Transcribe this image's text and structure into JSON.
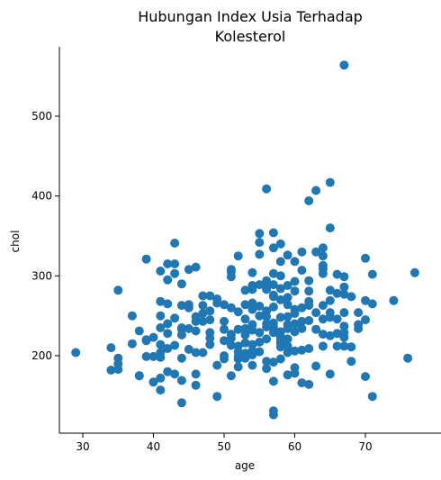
{
  "chart_data": {
    "type": "scatter",
    "title_lines": [
      "Hubungan Index Usia Terhadap",
      "Kolesterol"
    ],
    "xlabel": "age",
    "ylabel": "chol",
    "xlim": [
      27,
      78
    ],
    "ylim": [
      105,
      585
    ],
    "xticks": [
      30,
      40,
      50,
      60,
      70
    ],
    "yticks": [
      200,
      300,
      400,
      500
    ],
    "grid": false,
    "point_color": "#1f77b4",
    "points": [
      [
        29,
        204
      ],
      [
        34,
        210
      ],
      [
        34,
        182
      ],
      [
        35,
        282
      ],
      [
        35,
        197
      ],
      [
        35,
        190
      ],
      [
        35,
        183
      ],
      [
        37,
        250
      ],
      [
        37,
        215
      ],
      [
        38,
        231
      ],
      [
        38,
        175
      ],
      [
        38,
        175
      ],
      [
        39,
        321
      ],
      [
        39,
        199
      ],
      [
        39,
        219
      ],
      [
        39,
        220
      ],
      [
        40,
        199
      ],
      [
        40,
        223
      ],
      [
        40,
        167
      ],
      [
        41,
        306
      ],
      [
        41,
        268
      ],
      [
        41,
        250
      ],
      [
        41,
        235
      ],
      [
        41,
        214
      ],
      [
        41,
        204
      ],
      [
        41,
        198
      ],
      [
        41,
        172
      ],
      [
        41,
        157
      ],
      [
        42,
        315
      ],
      [
        42,
        295
      ],
      [
        42,
        265
      ],
      [
        42,
        240
      ],
      [
        42,
        228
      ],
      [
        42,
        209
      ],
      [
        42,
        180
      ],
      [
        43,
        341
      ],
      [
        43,
        315
      ],
      [
        43,
        303
      ],
      [
        43,
        247
      ],
      [
        43,
        213
      ],
      [
        43,
        177
      ],
      [
        44,
        290
      ],
      [
        44,
        263
      ],
      [
        44,
        235
      ],
      [
        44,
        233
      ],
      [
        44,
        226
      ],
      [
        44,
        197
      ],
      [
        44,
        169
      ],
      [
        44,
        141
      ],
      [
        45,
        308
      ],
      [
        45,
        264
      ],
      [
        45,
        260
      ],
      [
        45,
        234
      ],
      [
        45,
        208
      ],
      [
        46,
        311
      ],
      [
        46,
        249
      ],
      [
        46,
        243
      ],
      [
        46,
        231
      ],
      [
        46,
        204
      ],
      [
        46,
        177
      ],
      [
        46,
        163
      ],
      [
        47,
        275
      ],
      [
        47,
        263
      ],
      [
        47,
        253
      ],
      [
        47,
        243
      ],
      [
        47,
        204
      ],
      [
        48,
        275
      ],
      [
        48,
        256
      ],
      [
        48,
        245
      ],
      [
        48,
        229
      ],
      [
        48,
        222
      ],
      [
        48,
        214
      ],
      [
        49,
        271
      ],
      [
        49,
        266
      ],
      [
        49,
        188
      ],
      [
        49,
        149
      ],
      [
        50,
        264
      ],
      [
        50,
        243
      ],
      [
        50,
        233
      ],
      [
        50,
        219
      ],
      [
        50,
        200
      ],
      [
        50,
        196
      ],
      [
        51,
        308
      ],
      [
        51,
        305
      ],
      [
        51,
        299
      ],
      [
        51,
        260
      ],
      [
        51,
        227
      ],
      [
        51,
        222
      ],
      [
        51,
        213
      ],
      [
        51,
        175
      ],
      [
        52,
        325
      ],
      [
        52,
        255
      ],
      [
        52,
        233
      ],
      [
        52,
        212
      ],
      [
        52,
        205
      ],
      [
        52,
        199
      ],
      [
        52,
        196
      ],
      [
        52,
        186
      ],
      [
        53,
        282
      ],
      [
        53,
        264
      ],
      [
        53,
        246
      ],
      [
        53,
        234
      ],
      [
        53,
        226
      ],
      [
        53,
        216
      ],
      [
        53,
        203
      ],
      [
        53,
        197
      ],
      [
        54,
        304
      ],
      [
        54,
        288
      ],
      [
        54,
        286
      ],
      [
        54,
        283
      ],
      [
        54,
        266
      ],
      [
        54,
        258
      ],
      [
        54,
        239
      ],
      [
        54,
        232
      ],
      [
        54,
        214
      ],
      [
        54,
        206
      ],
      [
        54,
        201
      ],
      [
        54,
        188
      ],
      [
        55,
        353
      ],
      [
        55,
        342
      ],
      [
        55,
        327
      ],
      [
        55,
        289
      ],
      [
        55,
        262
      ],
      [
        55,
        250
      ],
      [
        55,
        229
      ],
      [
        55,
        217
      ],
      [
        55,
        205
      ],
      [
        56,
        409
      ],
      [
        56,
        294
      ],
      [
        56,
        288
      ],
      [
        56,
        283
      ],
      [
        56,
        256
      ],
      [
        56,
        249
      ],
      [
        56,
        240
      ],
      [
        56,
        236
      ],
      [
        56,
        221
      ],
      [
        56,
        193
      ],
      [
        56,
        184
      ],
      [
        57,
        354
      ],
      [
        57,
        335
      ],
      [
        57,
        303
      ],
      [
        57,
        289
      ],
      [
        57,
        276
      ],
      [
        57,
        274
      ],
      [
        57,
        261
      ],
      [
        57,
        241
      ],
      [
        57,
        236
      ],
      [
        57,
        229
      ],
      [
        57,
        192
      ],
      [
        57,
        168
      ],
      [
        57,
        131
      ],
      [
        57,
        126
      ],
      [
        58,
        340
      ],
      [
        58,
        318
      ],
      [
        58,
        300
      ],
      [
        58,
        284
      ],
      [
        58,
        270
      ],
      [
        58,
        248
      ],
      [
        58,
        230
      ],
      [
        58,
        224
      ],
      [
        58,
        220
      ],
      [
        58,
        216
      ],
      [
        58,
        211
      ],
      [
        58,
        196
      ],
      [
        59,
        326
      ],
      [
        59,
        288
      ],
      [
        59,
        273
      ],
      [
        59,
        264
      ],
      [
        59,
        249
      ],
      [
        59,
        239
      ],
      [
        59,
        234
      ],
      [
        59,
        221
      ],
      [
        59,
        212
      ],
      [
        59,
        204
      ],
      [
        59,
        176
      ],
      [
        60,
        318
      ],
      [
        60,
        293
      ],
      [
        60,
        281
      ],
      [
        60,
        258
      ],
      [
        60,
        253
      ],
      [
        60,
        240
      ],
      [
        60,
        230
      ],
      [
        60,
        206
      ],
      [
        60,
        185
      ],
      [
        60,
        178
      ],
      [
        61,
        330
      ],
      [
        61,
        307
      ],
      [
        61,
        260
      ],
      [
        61,
        243
      ],
      [
        61,
        234
      ],
      [
        61,
        207
      ],
      [
        61,
        166
      ],
      [
        62,
        394
      ],
      [
        62,
        294
      ],
      [
        62,
        281
      ],
      [
        62,
        268
      ],
      [
        62,
        263
      ],
      [
        62,
        244
      ],
      [
        62,
        209
      ],
      [
        62,
        164
      ],
      [
        63,
        407
      ],
      [
        63,
        330
      ],
      [
        63,
        254
      ],
      [
        63,
        233
      ],
      [
        63,
        187
      ],
      [
        64,
        335
      ],
      [
        64,
        325
      ],
      [
        64,
        313
      ],
      [
        64,
        309
      ],
      [
        64,
        303
      ],
      [
        64,
        263
      ],
      [
        64,
        246
      ],
      [
        64,
        227
      ],
      [
        64,
        212
      ],
      [
        65,
        417
      ],
      [
        65,
        360
      ],
      [
        65,
        282
      ],
      [
        65,
        269
      ],
      [
        65,
        254
      ],
      [
        65,
        248
      ],
      [
        65,
        225
      ],
      [
        65,
        177
      ],
      [
        66,
        302
      ],
      [
        66,
        278
      ],
      [
        66,
        246
      ],
      [
        66,
        228
      ],
      [
        66,
        212
      ],
      [
        67,
        564
      ],
      [
        67,
        299
      ],
      [
        67,
        286
      ],
      [
        67,
        277
      ],
      [
        67,
        254
      ],
      [
        67,
        237
      ],
      [
        67,
        229
      ],
      [
        67,
        223
      ],
      [
        67,
        212
      ],
      [
        68,
        274
      ],
      [
        68,
        211
      ],
      [
        68,
        193
      ],
      [
        69,
        254
      ],
      [
        69,
        239
      ],
      [
        69,
        234
      ],
      [
        70,
        322
      ],
      [
        70,
        269
      ],
      [
        70,
        245
      ],
      [
        70,
        174
      ],
      [
        71,
        302
      ],
      [
        71,
        265
      ],
      [
        71,
        149
      ],
      [
        74,
        269
      ],
      [
        76,
        197
      ],
      [
        77,
        304
      ]
    ]
  }
}
